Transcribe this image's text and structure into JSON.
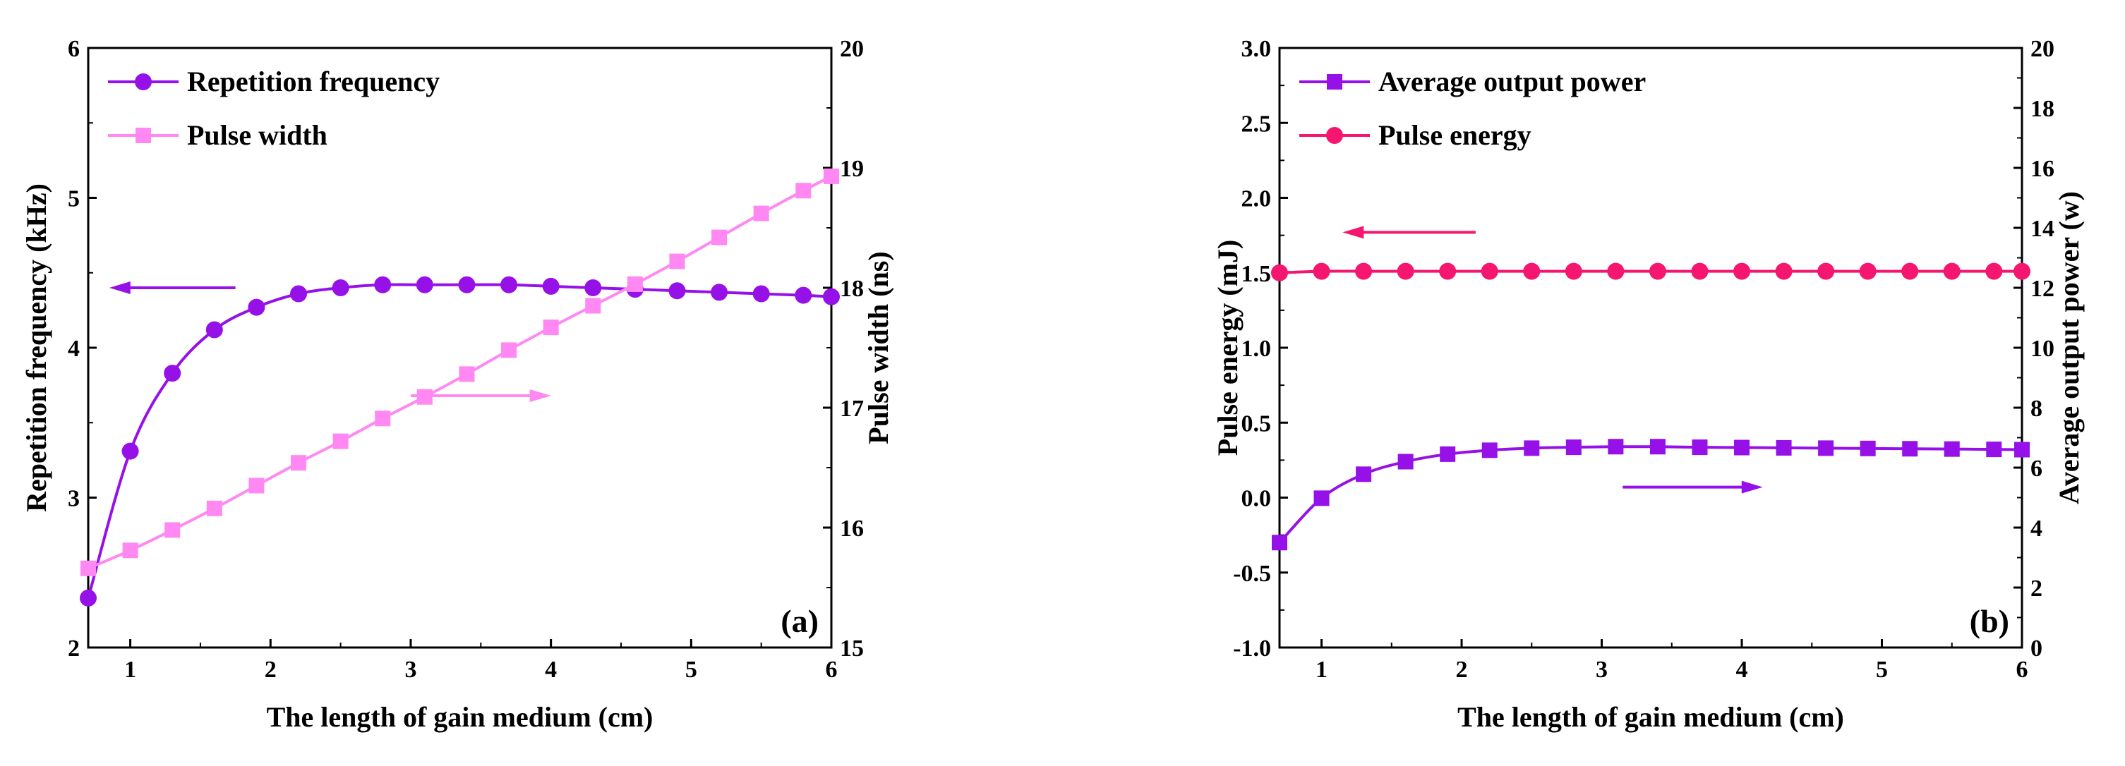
{
  "colors": {
    "purple": "#9611E8",
    "pink": "#FF88F2",
    "magenta": "#F5166F"
  },
  "chart_data": [
    {
      "type": "line",
      "panel_label": "(a)",
      "xlabel": "The length of gain medium (cm)",
      "ylabel_left": "Repetition frequency (kHz)",
      "ylabel_right": "Pulse width (ns)",
      "xlim": [
        0.7,
        6
      ],
      "ylim_left": [
        2,
        6
      ],
      "ylim_right": [
        15,
        20
      ],
      "x_ticks": [
        1,
        2,
        3,
        4,
        5,
        6
      ],
      "x_tick_labels": [
        "1",
        "2",
        "3",
        "4",
        "5",
        "6"
      ],
      "y_left_ticks": [
        2,
        3,
        4,
        5,
        6
      ],
      "y_left_tick_labels": [
        "2",
        "3",
        "4",
        "5",
        "6"
      ],
      "y_right_ticks": [
        15,
        16,
        17,
        18,
        19,
        20
      ],
      "y_right_tick_labels": [
        "15",
        "16",
        "17",
        "18",
        "19",
        "20"
      ],
      "legend_position": "top-left",
      "arrows": [
        {
          "axis": "left",
          "direction": "left",
          "x_from": 1.75,
          "x_to": 0.85,
          "y": 4.4
        },
        {
          "axis": "right",
          "direction": "right",
          "x_from": 3.0,
          "x_to": 4.0,
          "y": 17.1
        }
      ],
      "series": [
        {
          "name": "Repetition frequency",
          "axis": "left",
          "marker": "circle",
          "color": "#9611E8",
          "x": [
            0.7,
            1.0,
            1.3,
            1.6,
            1.9,
            2.2,
            2.5,
            2.8,
            3.1,
            3.4,
            3.7,
            4.0,
            4.3,
            4.6,
            4.9,
            5.2,
            5.5,
            5.8,
            6.0
          ],
          "y": [
            2.33,
            3.31,
            3.83,
            4.12,
            4.27,
            4.36,
            4.4,
            4.42,
            4.42,
            4.42,
            4.42,
            4.41,
            4.4,
            4.39,
            4.38,
            4.37,
            4.36,
            4.35,
            4.34
          ]
        },
        {
          "name": "Pulse width",
          "axis": "right",
          "marker": "square",
          "color": "#FF88F2",
          "x": [
            0.7,
            1.0,
            1.3,
            1.6,
            1.9,
            2.2,
            2.5,
            2.8,
            3.1,
            3.4,
            3.7,
            4.0,
            4.3,
            4.6,
            4.9,
            5.2,
            5.5,
            5.8,
            6.0
          ],
          "y": [
            15.66,
            15.81,
            15.98,
            16.16,
            16.35,
            16.54,
            16.72,
            16.91,
            17.09,
            17.28,
            17.48,
            17.67,
            17.85,
            18.03,
            18.22,
            18.42,
            18.62,
            18.81,
            18.93
          ]
        }
      ]
    },
    {
      "type": "line",
      "panel_label": "(b)",
      "xlabel": "The length of gain medium (cm)",
      "ylabel_left": "Pulse energy (mJ)",
      "ylabel_right": "Average output power (w)",
      "xlim": [
        0.7,
        6
      ],
      "ylim_left": [
        -1.0,
        3.0
      ],
      "ylim_right": [
        0,
        20
      ],
      "x_ticks": [
        1,
        2,
        3,
        4,
        5,
        6
      ],
      "x_tick_labels": [
        "1",
        "2",
        "3",
        "4",
        "5",
        "6"
      ],
      "y_left_ticks": [
        -1.0,
        -0.5,
        0.0,
        0.5,
        1.0,
        1.5,
        2.0,
        2.5,
        3.0
      ],
      "y_left_tick_labels": [
        "-1.0",
        "-0.5",
        "0.0",
        "0.5",
        "1.0",
        "1.5",
        "2.0",
        "2.5",
        "3.0"
      ],
      "y_right_ticks": [
        0,
        2,
        4,
        6,
        8,
        10,
        12,
        14,
        16,
        18,
        20
      ],
      "y_right_tick_labels": [
        "0",
        "2",
        "4",
        "6",
        "8",
        "10",
        "12",
        "14",
        "16",
        "18",
        "20"
      ],
      "legend_position": "top-left",
      "arrows": [
        {
          "axis": "left",
          "direction": "left",
          "x_from": 2.1,
          "x_to": 1.15,
          "y": 1.77
        },
        {
          "axis": "left",
          "direction": "right",
          "x_from": 3.15,
          "x_to": 4.15,
          "y": 0.07
        }
      ],
      "series": [
        {
          "name": "Average output power",
          "axis": "right",
          "marker": "square",
          "color": "#9611E8",
          "x": [
            0.7,
            1.0,
            1.3,
            1.6,
            1.9,
            2.2,
            2.5,
            2.8,
            3.1,
            3.4,
            3.7,
            4.0,
            4.3,
            4.6,
            4.9,
            5.2,
            5.5,
            5.8,
            6.0
          ],
          "y": [
            3.5,
            4.98,
            5.78,
            6.2,
            6.45,
            6.58,
            6.65,
            6.68,
            6.7,
            6.7,
            6.68,
            6.67,
            6.66,
            6.65,
            6.64,
            6.63,
            6.62,
            6.61,
            6.6
          ]
        },
        {
          "name": "Pulse energy",
          "axis": "left",
          "marker": "circle",
          "color": "#F5166F",
          "x": [
            0.7,
            1.0,
            1.3,
            1.6,
            1.9,
            2.2,
            2.5,
            2.8,
            3.1,
            3.4,
            3.7,
            4.0,
            4.3,
            4.6,
            4.9,
            5.2,
            5.5,
            5.8,
            6.0
          ],
          "y": [
            1.5,
            1.51,
            1.51,
            1.51,
            1.51,
            1.51,
            1.51,
            1.51,
            1.51,
            1.51,
            1.51,
            1.51,
            1.51,
            1.51,
            1.51,
            1.51,
            1.51,
            1.51,
            1.51
          ]
        }
      ]
    }
  ]
}
